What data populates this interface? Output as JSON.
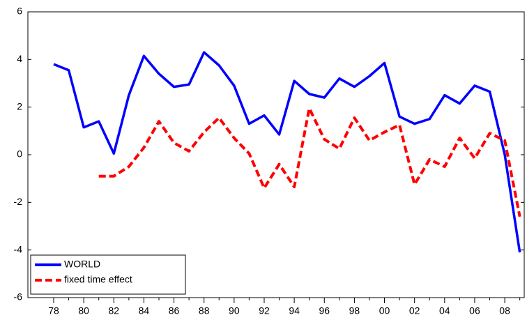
{
  "chart_data": {
    "type": "line",
    "categories": [
      "78",
      null,
      "80",
      null,
      "82",
      null,
      "84",
      null,
      "86",
      null,
      "88",
      null,
      "90",
      null,
      "92",
      null,
      "94",
      null,
      "96",
      null,
      "98",
      null,
      "00",
      null,
      "02",
      null,
      "04",
      null,
      "06",
      null,
      "08",
      null
    ],
    "series": [
      {
        "name": "WORLD",
        "color": "#0000ff",
        "dash": false,
        "values": [
          3.8,
          3.55,
          1.15,
          1.4,
          0.05,
          2.5,
          4.15,
          3.4,
          2.85,
          2.95,
          4.3,
          3.75,
          2.9,
          1.3,
          1.65,
          0.85,
          3.1,
          2.55,
          2.4,
          3.2,
          2.85,
          3.3,
          3.85,
          1.6,
          1.3,
          1.5,
          2.5,
          2.15,
          2.9,
          2.65,
          0.0,
          -4.1
        ]
      },
      {
        "name": "fixed time effect",
        "color": "#ff0000",
        "dash": true,
        "values": [
          null,
          null,
          null,
          -0.9,
          -0.9,
          -0.5,
          0.3,
          1.4,
          0.5,
          0.15,
          0.95,
          1.55,
          0.7,
          0.05,
          -1.4,
          -0.4,
          -1.35,
          1.95,
          0.65,
          0.25,
          1.55,
          0.6,
          0.95,
          1.25,
          -1.25,
          -0.2,
          -0.5,
          0.7,
          -0.15,
          0.9,
          0.6,
          -2.6
        ]
      }
    ],
    "ylim": [
      -6,
      6
    ],
    "yticks": [
      -6,
      -4,
      -2,
      0,
      2,
      4,
      6
    ],
    "legend": "bottom-left"
  }
}
